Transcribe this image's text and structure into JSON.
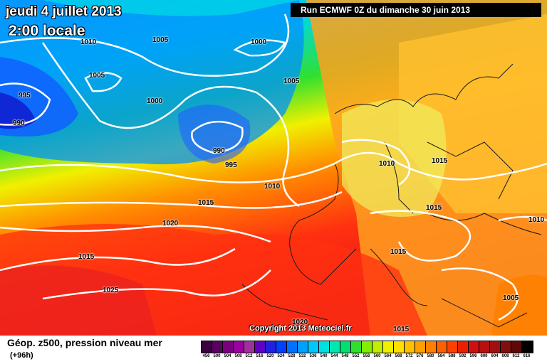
{
  "header": {
    "date": "jeudi 4 juillet 2013",
    "time": "2:00 locale",
    "run": "Run ECMWF 0Z du dimanche 30 juin 2013"
  },
  "isobars": [
    {
      "label": "1010"
    },
    {
      "label": "1005"
    },
    {
      "label": "1000"
    },
    {
      "label": "1005"
    },
    {
      "label": "995"
    },
    {
      "label": "990"
    },
    {
      "label": "1000"
    },
    {
      "label": "990"
    },
    {
      "label": "995"
    },
    {
      "label": "1005"
    },
    {
      "label": "1010"
    },
    {
      "label": "1015"
    },
    {
      "label": "1020"
    },
    {
      "label": "1015"
    },
    {
      "label": "1025"
    },
    {
      "label": "1010"
    },
    {
      "label": "1015"
    },
    {
      "label": "1015"
    },
    {
      "label": "1015"
    },
    {
      "label": "1010"
    },
    {
      "label": "1005"
    },
    {
      "label": "1015"
    },
    {
      "label": "1020"
    }
  ],
  "copyright": "Copyright 2013 Meteociel.fr",
  "footer": {
    "title": "Géop. z500, pression niveau mer",
    "subtitle": "(+96h)"
  },
  "legend": {
    "ticks": [
      "456",
      "500",
      "504",
      "508",
      "512",
      "516",
      "520",
      "524",
      "528",
      "532",
      "536",
      "540",
      "544",
      "548",
      "552",
      "556",
      "560",
      "564",
      "568",
      "572",
      "576",
      "580",
      "584",
      "588",
      "592",
      "596",
      "600",
      "604",
      "608",
      "612",
      "616"
    ],
    "colors": [
      "#3a0040",
      "#5a0060",
      "#7a007f",
      "#9a009f",
      "#a030a0",
      "#6000c0",
      "#2020e0",
      "#0040ff",
      "#0070ff",
      "#00a0ff",
      "#00c8ff",
      "#00e0e0",
      "#00e8b0",
      "#00e070",
      "#30e030",
      "#80f000",
      "#c0f000",
      "#f0f000",
      "#ffe000",
      "#ffc000",
      "#ffa000",
      "#ff8000",
      "#ff6000",
      "#ff4000",
      "#e82000",
      "#d01010",
      "#b81010",
      "#a01010",
      "#801010",
      "#600808",
      "#000000"
    ]
  }
}
